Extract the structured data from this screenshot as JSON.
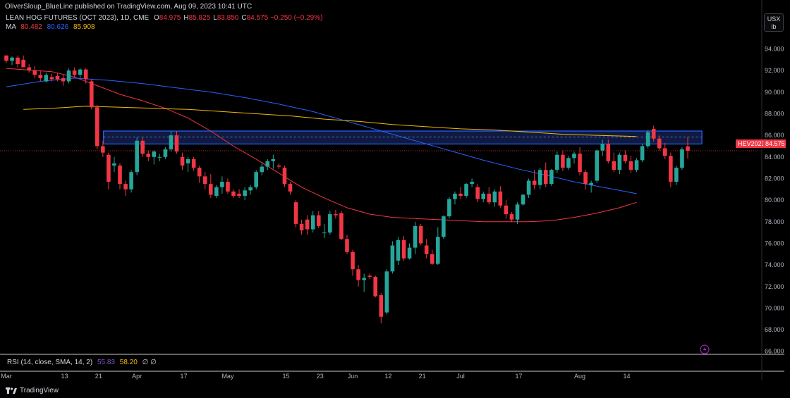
{
  "header": {
    "publisher": "OliverSloup_BlueLine published on TradingView.com, Aug 09, 2023 10:41 UTC",
    "symbol_title": "LEAN HOG FUTURES (OCT 2023), 1D, CME",
    "ohlc": [
      {
        "k": "O",
        "v": "84.975"
      },
      {
        "k": "H",
        "v": "85.825"
      },
      {
        "k": "L",
        "v": "83.850"
      },
      {
        "k": "C",
        "v": "84.575"
      }
    ],
    "change": "−0.250 (−0.29%)",
    "ma_label": "MA",
    "ma_values": [
      "80.482",
      "80.626",
      "85.908"
    ]
  },
  "unit_box": {
    "line1": "USX",
    "line2": "lb"
  },
  "price_tags": {
    "symbol": "HEV2023",
    "last": "84.575"
  },
  "rsi": {
    "label": "RSI (14, close, SMA, 14, 2)",
    "v1": "55.83",
    "v2": "58.20",
    "extra": "∅  ∅"
  },
  "brand": {
    "name": "TradingView"
  },
  "colors": {
    "up": "#26a69a",
    "down": "#f23645",
    "ma_red": "#f23645",
    "ma_blue": "#2962ff",
    "ma_yellow": "#f0b90b",
    "zone": "#1e3a8a"
  },
  "chart_data": {
    "type": "candlestick",
    "title": "LEAN HOG FUTURES (OCT 2023), 1D, CME",
    "y_axis": {
      "min": 65,
      "max": 95,
      "ticks": [
        "94.000",
        "92.000",
        "90.000",
        "88.000",
        "86.000",
        "84.000",
        "82.000",
        "80.000",
        "78.000",
        "76.000",
        "74.000",
        "72.000",
        "70.000",
        "68.000",
        "66.000"
      ]
    },
    "x_ticks": [
      {
        "label": "Mar",
        "x": 0
      },
      {
        "label": "13",
        "x": 10
      },
      {
        "label": "21",
        "x": 16
      },
      {
        "label": "Apr",
        "x": 23
      },
      {
        "label": "17",
        "x": 31
      },
      {
        "label": "May",
        "x": 39
      },
      {
        "label": "15",
        "x": 49
      },
      {
        "label": "23",
        "x": 55
      },
      {
        "label": "Jun",
        "x": 61
      },
      {
        "label": "12",
        "x": 67
      },
      {
        "label": "21",
        "x": 73
      },
      {
        "label": "Jul",
        "x": 80
      },
      {
        "label": "17",
        "x": 90
      },
      {
        "label": "Aug",
        "x": 101
      },
      {
        "label": "14",
        "x": 109
      }
    ],
    "last_price": 84.575,
    "resistance_zone": {
      "top": 86.4,
      "bottom": 85.2,
      "mid_dashed": 85.85
    },
    "grid": false,
    "candles": [
      [
        93.4,
        93.4,
        92.7,
        92.9
      ],
      [
        92.9,
        93.3,
        92.5,
        93.2
      ],
      [
        93.2,
        93.4,
        92.3,
        92.6
      ],
      [
        93.0,
        93.4,
        92.3,
        92.3
      ],
      [
        92.3,
        92.6,
        91.8,
        92.0
      ],
      [
        92.0,
        92.4,
        91.3,
        91.6
      ],
      [
        91.6,
        92.0,
        91.0,
        91.3
      ],
      [
        91.0,
        91.8,
        90.9,
        91.6
      ],
      [
        91.4,
        91.7,
        91.0,
        91.2
      ],
      [
        91.5,
        91.8,
        91.0,
        91.2
      ],
      [
        91.3,
        91.6,
        90.6,
        91.0
      ],
      [
        91.0,
        92.2,
        90.8,
        92.0
      ],
      [
        92.0,
        92.3,
        91.4,
        91.6
      ],
      [
        91.6,
        92.2,
        91.3,
        92.1
      ],
      [
        92.1,
        92.2,
        90.8,
        91.2
      ],
      [
        91.0,
        91.2,
        88.4,
        88.6
      ],
      [
        88.6,
        88.8,
        84.7,
        85.0
      ],
      [
        85.0,
        85.5,
        84.0,
        84.4
      ],
      [
        84.2,
        84.4,
        81.0,
        81.7
      ],
      [
        83.2,
        84.0,
        82.6,
        83.4
      ],
      [
        83.2,
        83.4,
        81.0,
        81.5
      ],
      [
        81.5,
        81.8,
        80.4,
        81.0
      ],
      [
        81.0,
        82.8,
        80.7,
        82.6
      ],
      [
        82.6,
        85.8,
        82.3,
        85.5
      ],
      [
        85.5,
        85.8,
        84.0,
        84.3
      ],
      [
        84.3,
        84.6,
        83.6,
        84.0
      ],
      [
        84.0,
        84.6,
        83.3,
        84.5
      ],
      [
        84.0,
        84.3,
        83.6,
        84.0
      ],
      [
        84.0,
        84.9,
        83.8,
        84.7
      ],
      [
        84.7,
        86.4,
        84.5,
        86.0
      ],
      [
        86.0,
        86.4,
        84.3,
        84.5
      ],
      [
        84.0,
        84.4,
        82.8,
        83.2
      ],
      [
        83.4,
        84.0,
        82.6,
        83.8
      ],
      [
        83.8,
        84.0,
        82.7,
        83.0
      ],
      [
        83.0,
        83.2,
        81.6,
        82.2
      ],
      [
        82.2,
        82.6,
        81.0,
        81.5
      ],
      [
        81.5,
        82.4,
        80.2,
        80.5
      ],
      [
        80.4,
        81.4,
        80.2,
        81.2
      ],
      [
        81.2,
        82.2,
        80.6,
        81.7
      ],
      [
        81.7,
        82.0,
        80.6,
        80.8
      ],
      [
        80.8,
        81.0,
        80.2,
        80.4
      ],
      [
        80.6,
        81.0,
        80.2,
        80.4
      ],
      [
        80.4,
        81.2,
        80.0,
        80.9
      ],
      [
        80.9,
        81.4,
        80.5,
        81.2
      ],
      [
        81.2,
        82.8,
        81.0,
        82.6
      ],
      [
        82.6,
        83.4,
        82.3,
        83.1
      ],
      [
        83.1,
        83.8,
        82.8,
        83.6
      ],
      [
        83.6,
        84.2,
        82.9,
        83.8
      ],
      [
        83.2,
        83.4,
        82.9,
        83.1
      ],
      [
        83.0,
        83.2,
        81.2,
        81.5
      ],
      [
        81.5,
        81.7,
        80.5,
        80.8
      ],
      [
        79.8,
        80.0,
        77.5,
        77.8
      ],
      [
        77.8,
        78.2,
        76.8,
        77.2
      ],
      [
        78.2,
        78.6,
        76.8,
        77.3
      ],
      [
        77.3,
        79.0,
        77.0,
        78.6
      ],
      [
        78.6,
        79.0,
        77.4,
        77.6
      ],
      [
        77.0,
        77.8,
        76.5,
        77.0
      ],
      [
        77.0,
        79.0,
        76.8,
        78.7
      ],
      [
        78.7,
        79.1,
        78.3,
        78.6
      ],
      [
        78.8,
        79.0,
        76.3,
        76.4
      ],
      [
        76.4,
        76.8,
        75.0,
        75.2
      ],
      [
        75.2,
        75.4,
        73.0,
        73.6
      ],
      [
        73.6,
        74.0,
        72.0,
        72.6
      ],
      [
        72.6,
        73.2,
        71.5,
        72.8
      ],
      [
        73.0,
        73.2,
        72.7,
        72.9
      ],
      [
        72.9,
        73.0,
        71.0,
        71.1
      ],
      [
        71.2,
        71.4,
        68.6,
        69.2
      ],
      [
        69.6,
        73.6,
        69.4,
        73.4
      ],
      [
        73.4,
        76.2,
        73.2,
        75.8
      ],
      [
        74.4,
        76.6,
        74.0,
        76.3
      ],
      [
        76.3,
        76.7,
        74.4,
        74.6
      ],
      [
        74.6,
        76.0,
        74.5,
        75.6
      ],
      [
        75.6,
        78.0,
        75.0,
        77.6
      ],
      [
        77.6,
        77.8,
        75.8,
        76.0
      ],
      [
        75.8,
        76.4,
        74.6,
        75.0
      ],
      [
        75.0,
        75.4,
        74.0,
        74.1
      ],
      [
        74.1,
        77.5,
        74.0,
        76.6
      ],
      [
        76.6,
        78.6,
        76.4,
        78.5
      ],
      [
        78.5,
        80.3,
        78.3,
        80.1
      ],
      [
        80.1,
        80.8,
        79.6,
        80.6
      ],
      [
        80.6,
        81.2,
        80.1,
        80.4
      ],
      [
        80.4,
        81.6,
        80.2,
        81.5
      ],
      [
        81.5,
        82.0,
        81.2,
        81.7
      ],
      [
        81.2,
        81.5,
        79.8,
        80.1
      ],
      [
        80.1,
        80.8,
        79.8,
        80.6
      ],
      [
        80.6,
        81.2,
        79.6,
        79.8
      ],
      [
        79.8,
        81.0,
        79.4,
        80.8
      ],
      [
        80.8,
        81.3,
        79.3,
        79.5
      ],
      [
        79.5,
        80.0,
        78.3,
        78.7
      ],
      [
        78.7,
        78.9,
        78.0,
        78.2
      ],
      [
        78.2,
        79.8,
        77.8,
        79.6
      ],
      [
        79.6,
        80.6,
        79.5,
        80.5
      ],
      [
        80.5,
        82.0,
        80.2,
        81.8
      ],
      [
        81.8,
        82.8,
        81.0,
        81.4
      ],
      [
        81.4,
        83.0,
        81.0,
        82.8
      ],
      [
        82.8,
        83.5,
        81.2,
        81.5
      ],
      [
        81.5,
        82.9,
        81.3,
        82.8
      ],
      [
        82.8,
        84.5,
        82.5,
        84.2
      ],
      [
        84.2,
        84.6,
        82.7,
        83.0
      ],
      [
        83.0,
        84.1,
        82.8,
        83.9
      ],
      [
        83.9,
        84.5,
        83.4,
        84.3
      ],
      [
        84.3,
        84.9,
        82.3,
        82.6
      ],
      [
        82.6,
        82.8,
        81.0,
        81.5
      ],
      [
        81.4,
        81.8,
        80.7,
        81.6
      ],
      [
        81.8,
        84.7,
        81.6,
        84.6
      ],
      [
        84.6,
        85.6,
        84.1,
        85.2
      ],
      [
        85.2,
        85.6,
        83.4,
        83.6
      ],
      [
        83.6,
        84.4,
        82.6,
        82.8
      ],
      [
        82.8,
        84.4,
        82.4,
        84.2
      ],
      [
        84.2,
        84.6,
        83.4,
        83.6
      ],
      [
        83.6,
        84.1,
        82.5,
        82.8
      ],
      [
        82.8,
        83.9,
        82.6,
        83.7
      ],
      [
        83.7,
        85.2,
        83.5,
        85.0
      ],
      [
        85.0,
        86.5,
        84.8,
        86.3
      ],
      [
        86.6,
        86.9,
        85.4,
        85.7
      ],
      [
        85.7,
        86.0,
        84.6,
        84.8
      ],
      [
        84.8,
        85.3,
        83.8,
        84.1
      ],
      [
        84.1,
        84.4,
        81.2,
        81.7
      ],
      [
        81.7,
        83.2,
        81.4,
        83.0
      ],
      [
        83.0,
        84.9,
        82.8,
        84.7
      ],
      [
        84.975,
        85.825,
        83.85,
        84.575
      ]
    ],
    "ma_series": [
      {
        "name": "MA red",
        "color": "#f23645",
        "points": [
          [
            0,
            92.2
          ],
          [
            8,
            91.9
          ],
          [
            12,
            91.4
          ],
          [
            16,
            90.6
          ],
          [
            20,
            89.8
          ],
          [
            24,
            89.2
          ],
          [
            28,
            88.5
          ],
          [
            32,
            87.6
          ],
          [
            36,
            86.4
          ],
          [
            40,
            85.0
          ],
          [
            44,
            83.8
          ],
          [
            48,
            82.5
          ],
          [
            52,
            81.2
          ],
          [
            56,
            80.2
          ],
          [
            60,
            79.3
          ],
          [
            64,
            78.7
          ],
          [
            68,
            78.4
          ],
          [
            72,
            78.3
          ],
          [
            76,
            78.2
          ],
          [
            80,
            78.1
          ],
          [
            84,
            78.0
          ],
          [
            88,
            78.0
          ],
          [
            92,
            78.0
          ],
          [
            96,
            78.1
          ],
          [
            100,
            78.4
          ],
          [
            104,
            78.8
          ],
          [
            108,
            79.3
          ],
          [
            111,
            79.8
          ]
        ]
      },
      {
        "name": "MA blue",
        "color": "#2962ff",
        "points": [
          [
            0,
            90.5
          ],
          [
            6,
            91.0
          ],
          [
            12,
            91.3
          ],
          [
            18,
            91.1
          ],
          [
            24,
            90.8
          ],
          [
            30,
            90.4
          ],
          [
            36,
            90.0
          ],
          [
            42,
            89.5
          ],
          [
            48,
            88.9
          ],
          [
            54,
            88.2
          ],
          [
            60,
            87.3
          ],
          [
            66,
            86.4
          ],
          [
            72,
            85.5
          ],
          [
            78,
            84.6
          ],
          [
            84,
            83.7
          ],
          [
            90,
            82.9
          ],
          [
            96,
            82.2
          ],
          [
            100,
            81.7
          ],
          [
            104,
            81.3
          ],
          [
            108,
            80.9
          ],
          [
            111,
            80.6
          ]
        ]
      },
      {
        "name": "MA yellow",
        "color": "#f0b90b",
        "points": [
          [
            3,
            88.4
          ],
          [
            8,
            88.5
          ],
          [
            14,
            88.7
          ],
          [
            20,
            88.6
          ],
          [
            26,
            88.5
          ],
          [
            32,
            88.4
          ],
          [
            38,
            88.2
          ],
          [
            44,
            88.0
          ],
          [
            50,
            87.8
          ],
          [
            56,
            87.5
          ],
          [
            62,
            87.3
          ],
          [
            68,
            87.0
          ],
          [
            74,
            86.8
          ],
          [
            80,
            86.6
          ],
          [
            86,
            86.5
          ],
          [
            92,
            86.3
          ],
          [
            98,
            86.1
          ],
          [
            104,
            86.0
          ],
          [
            111,
            85.9
          ]
        ]
      }
    ]
  }
}
